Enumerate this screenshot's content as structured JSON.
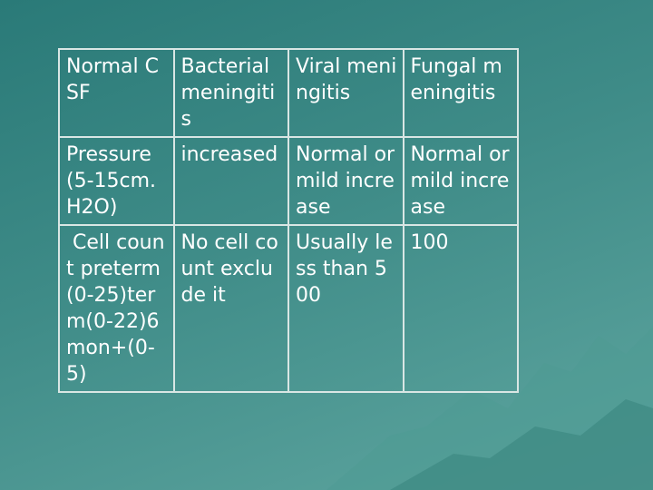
{
  "table": {
    "header": [
      "Normal CSF",
      "Bacterial meningitis",
      "Viral meningitis",
      "Fungal meningitis"
    ],
    "rows": [
      [
        "Pressure (5-15cm.H2O)",
        "increased",
        "Normal or mild increase",
        "Normal or mild increase"
      ],
      [
        " Cell count preterm(0-25)term(0-22)6mon+(0-5)",
        "No cell count exclude it",
        "Usually less than 500",
        "100"
      ]
    ]
  },
  "colors": {
    "background": "#3f8c88",
    "text": "#ffffff",
    "border": "#d9e6e4"
  }
}
